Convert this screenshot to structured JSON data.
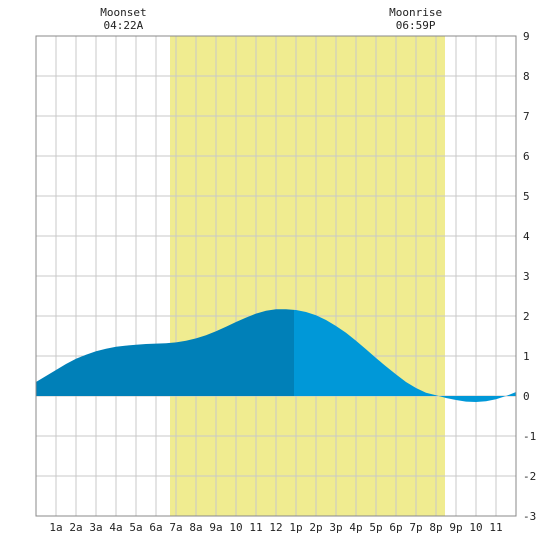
{
  "chart_data": {
    "type": "area",
    "title": "",
    "xlabel": "",
    "ylabel": "",
    "xlim": [
      0,
      24
    ],
    "ylim": [
      -3,
      9
    ],
    "grid": true,
    "x_ticks": [
      {
        "x": 1,
        "label": "1a"
      },
      {
        "x": 2,
        "label": "2a"
      },
      {
        "x": 3,
        "label": "3a"
      },
      {
        "x": 4,
        "label": "4a"
      },
      {
        "x": 5,
        "label": "5a"
      },
      {
        "x": 6,
        "label": "6a"
      },
      {
        "x": 7,
        "label": "7a"
      },
      {
        "x": 8,
        "label": "8a"
      },
      {
        "x": 9,
        "label": "9a"
      },
      {
        "x": 10,
        "label": "10"
      },
      {
        "x": 11,
        "label": "11"
      },
      {
        "x": 12,
        "label": "12"
      },
      {
        "x": 13,
        "label": "1p"
      },
      {
        "x": 14,
        "label": "2p"
      },
      {
        "x": 15,
        "label": "3p"
      },
      {
        "x": 16,
        "label": "4p"
      },
      {
        "x": 17,
        "label": "5p"
      },
      {
        "x": 18,
        "label": "6p"
      },
      {
        "x": 19,
        "label": "7p"
      },
      {
        "x": 20,
        "label": "8p"
      },
      {
        "x": 21,
        "label": "9p"
      },
      {
        "x": 22,
        "label": "10"
      },
      {
        "x": 23,
        "label": "11"
      }
    ],
    "y_ticks": [
      -3,
      -2,
      -1,
      0,
      1,
      2,
      3,
      4,
      5,
      6,
      7,
      8,
      9
    ],
    "daylight": {
      "start": 6.7,
      "end": 20.45,
      "color": "#f0ec90"
    },
    "moon_events": [
      {
        "label": "Moonset",
        "time": "04:22A",
        "x": 4.37
      },
      {
        "label": "Moonrise",
        "time": "06:59P",
        "x": 18.98
      }
    ],
    "split_x": 12.9,
    "colors": {
      "tide_before": "#0080b8",
      "tide_after": "#0098d8",
      "grid": "#c8c8c8",
      "border": "#888888"
    },
    "series": [
      {
        "x": [
          0,
          0.5,
          1,
          1.5,
          2,
          2.5,
          3,
          3.5,
          4,
          4.5,
          5,
          5.5,
          6,
          6.5,
          7,
          7.5,
          8,
          8.5,
          9,
          9.5,
          10,
          10.5,
          11,
          11.5,
          12,
          12.5,
          13,
          13.5,
          14,
          14.5,
          15,
          15.5,
          16,
          16.5,
          17,
          17.5,
          18,
          18.5,
          19,
          19.5,
          20,
          20.5,
          21,
          21.5,
          22,
          22.5,
          23,
          23.5,
          24
        ],
        "y": [
          0.35,
          0.5,
          0.65,
          0.8,
          0.93,
          1.03,
          1.12,
          1.18,
          1.23,
          1.26,
          1.28,
          1.3,
          1.31,
          1.32,
          1.34,
          1.38,
          1.44,
          1.52,
          1.62,
          1.73,
          1.85,
          1.96,
          2.06,
          2.13,
          2.17,
          2.17,
          2.15,
          2.1,
          2.02,
          1.9,
          1.75,
          1.58,
          1.38,
          1.17,
          0.95,
          0.74,
          0.54,
          0.35,
          0.2,
          0.08,
          0.02,
          -0.05,
          -0.1,
          -0.14,
          -0.15,
          -0.13,
          -0.08,
          0.0,
          0.1
        ]
      }
    ]
  }
}
